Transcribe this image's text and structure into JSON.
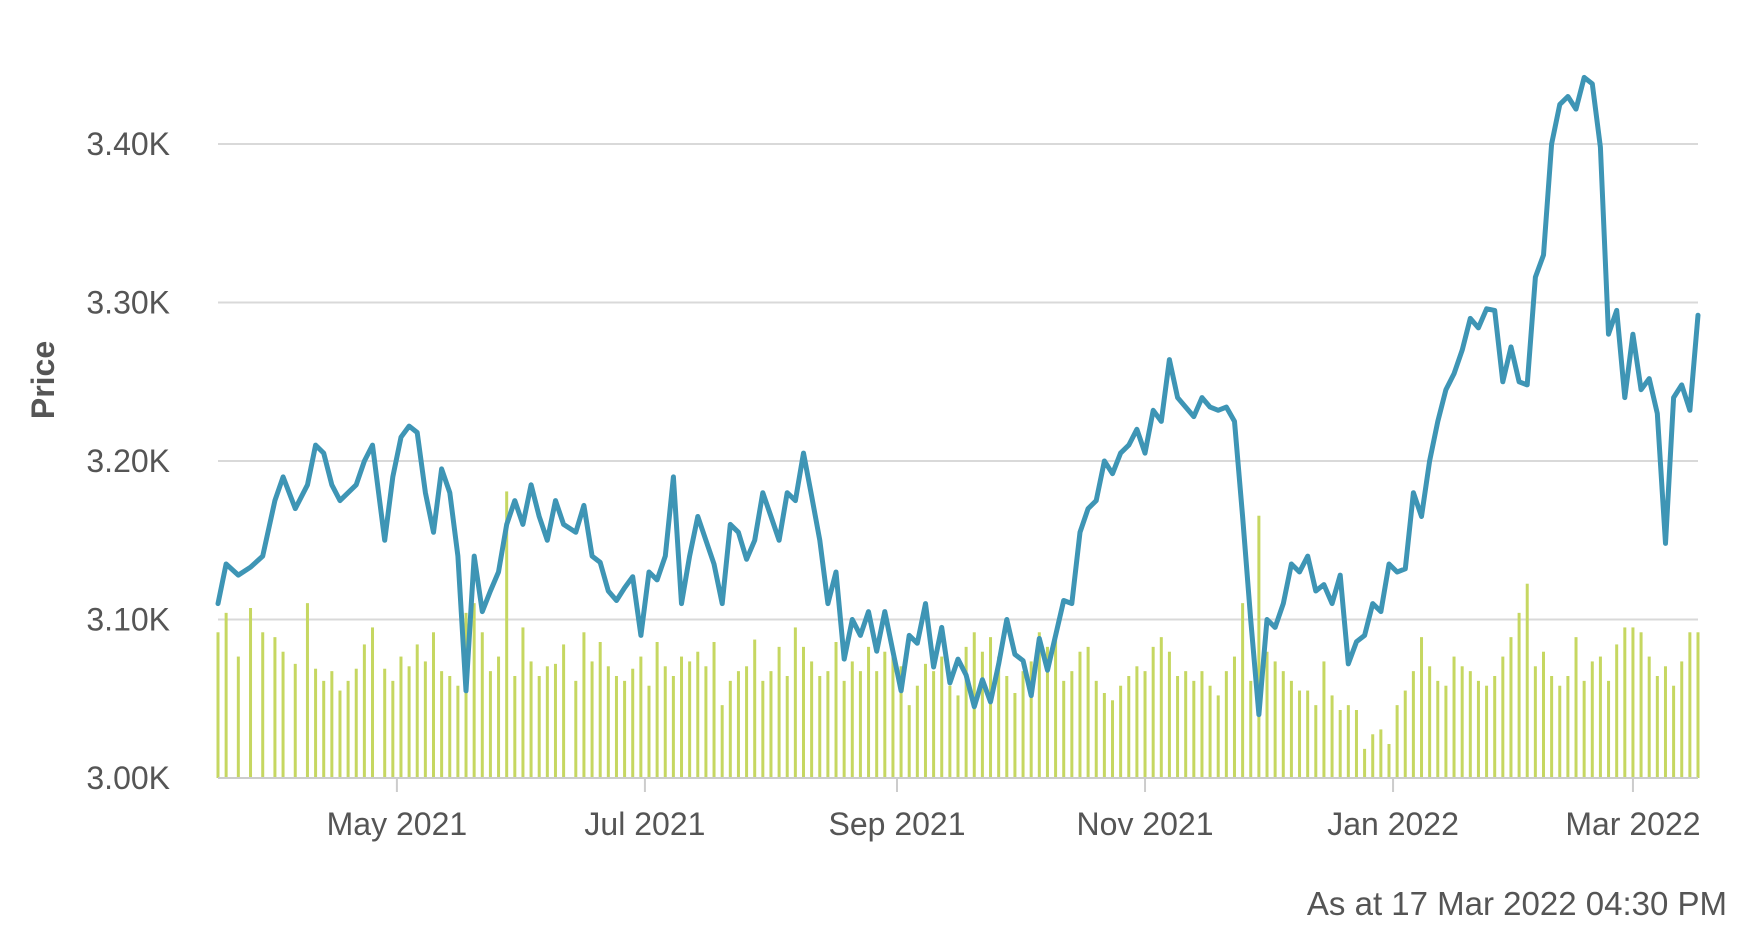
{
  "footer": {
    "as_at": "As at 17 Mar 2022 04:30 PM"
  },
  "colors": {
    "price_line": "#3e95b5",
    "volume_bars": "#c6d761",
    "gridline": "#d9d9d9",
    "axis": "#cccccc",
    "text": "#555555"
  },
  "chart_data": {
    "type": "line",
    "ylabel": "Price",
    "xlabel": "",
    "ylim": [
      3000,
      3460
    ],
    "yticks": [
      3000,
      3100,
      3200,
      3300,
      3400
    ],
    "ytick_labels": [
      "3.00K",
      "3.10K",
      "3.20K",
      "3.30K",
      "3.40K"
    ],
    "xlim": [
      "2021-03-18",
      "2022-03-17"
    ],
    "xticks": [
      {
        "date": "2021-05-01",
        "label": "May 2021"
      },
      {
        "date": "2021-07-01",
        "label": "Jul 2021"
      },
      {
        "date": "2021-09-01",
        "label": "Sep 2021"
      },
      {
        "date": "2021-11-01",
        "label": "Nov 2021"
      },
      {
        "date": "2022-01-01",
        "label": "Jan 2022"
      },
      {
        "date": "2022-03-01",
        "label": "Mar 2022"
      }
    ],
    "grid": true,
    "legend": "none",
    "series": [
      {
        "role": "price",
        "x": [
          "2021-03-18",
          "2021-03-20",
          "2021-03-23",
          "2021-03-26",
          "2021-03-29",
          "2021-04-01",
          "2021-04-03",
          "2021-04-06",
          "2021-04-09",
          "2021-04-11",
          "2021-04-13",
          "2021-04-15",
          "2021-04-17",
          "2021-04-19",
          "2021-04-21",
          "2021-04-23",
          "2021-04-25",
          "2021-04-28",
          "2021-04-30",
          "2021-05-02",
          "2021-05-04",
          "2021-05-06",
          "2021-05-08",
          "2021-05-10",
          "2021-05-12",
          "2021-05-14",
          "2021-05-16",
          "2021-05-18",
          "2021-05-20",
          "2021-05-22",
          "2021-05-24",
          "2021-05-26",
          "2021-05-28",
          "2021-05-30",
          "2021-06-01",
          "2021-06-03",
          "2021-06-05",
          "2021-06-07",
          "2021-06-09",
          "2021-06-11",
          "2021-06-14",
          "2021-06-16",
          "2021-06-18",
          "2021-06-20",
          "2021-06-22",
          "2021-06-24",
          "2021-06-26",
          "2021-06-28",
          "2021-06-30",
          "2021-07-02",
          "2021-07-04",
          "2021-07-06",
          "2021-07-08",
          "2021-07-10",
          "2021-07-12",
          "2021-07-14",
          "2021-07-16",
          "2021-07-18",
          "2021-07-20",
          "2021-07-22",
          "2021-07-24",
          "2021-07-26",
          "2021-07-28",
          "2021-07-30",
          "2021-08-01",
          "2021-08-03",
          "2021-08-05",
          "2021-08-07",
          "2021-08-09",
          "2021-08-11",
          "2021-08-13",
          "2021-08-15",
          "2021-08-17",
          "2021-08-19",
          "2021-08-21",
          "2021-08-23",
          "2021-08-25",
          "2021-08-27",
          "2021-08-29",
          "2021-08-31",
          "2021-09-02",
          "2021-09-04",
          "2021-09-06",
          "2021-09-08",
          "2021-09-10",
          "2021-09-12",
          "2021-09-14",
          "2021-09-16",
          "2021-09-18",
          "2021-09-20",
          "2021-09-22",
          "2021-09-24",
          "2021-09-26",
          "2021-09-28",
          "2021-09-30",
          "2021-10-02",
          "2021-10-04",
          "2021-10-06",
          "2021-10-08",
          "2021-10-10",
          "2021-10-12",
          "2021-10-14",
          "2021-10-16",
          "2021-10-18",
          "2021-10-20",
          "2021-10-22",
          "2021-10-24",
          "2021-10-26",
          "2021-10-28",
          "2021-10-30",
          "2021-11-01",
          "2021-11-03",
          "2021-11-05",
          "2021-11-07",
          "2021-11-09",
          "2021-11-11",
          "2021-11-13",
          "2021-11-15",
          "2021-11-17",
          "2021-11-19",
          "2021-11-21",
          "2021-11-23",
          "2021-11-25",
          "2021-11-27",
          "2021-11-29",
          "2021-12-01",
          "2021-12-03",
          "2021-12-05",
          "2021-12-07",
          "2021-12-09",
          "2021-12-11",
          "2021-12-13",
          "2021-12-15",
          "2021-12-17",
          "2021-12-19",
          "2021-12-21",
          "2021-12-23",
          "2021-12-25",
          "2021-12-27",
          "2021-12-29",
          "2021-12-31",
          "2022-01-02",
          "2022-01-04",
          "2022-01-06",
          "2022-01-08",
          "2022-01-10",
          "2022-01-12",
          "2022-01-14",
          "2022-01-16",
          "2022-01-18",
          "2022-01-20",
          "2022-01-22",
          "2022-01-24",
          "2022-01-26",
          "2022-01-28",
          "2022-01-30",
          "2022-02-01",
          "2022-02-03",
          "2022-02-05",
          "2022-02-07",
          "2022-02-09",
          "2022-02-11",
          "2022-02-13",
          "2022-02-15",
          "2022-02-17",
          "2022-02-19",
          "2022-02-21",
          "2022-02-23",
          "2022-02-25",
          "2022-02-27",
          "2022-03-01",
          "2022-03-03",
          "2022-03-05",
          "2022-03-07",
          "2022-03-09",
          "2022-03-11",
          "2022-03-13",
          "2022-03-15",
          "2022-03-17"
        ],
        "values": [
          3110,
          3135,
          3128,
          3133,
          3140,
          3175,
          3190,
          3170,
          3185,
          3210,
          3205,
          3185,
          3175,
          3180,
          3185,
          3200,
          3210,
          3150,
          3190,
          3215,
          3222,
          3218,
          3180,
          3155,
          3195,
          3180,
          3140,
          3055,
          3140,
          3105,
          3118,
          3130,
          3160,
          3175,
          3160,
          3185,
          3165,
          3150,
          3175,
          3160,
          3155,
          3172,
          3140,
          3136,
          3118,
          3112,
          3120,
          3127,
          3090,
          3130,
          3125,
          3140,
          3190,
          3110,
          3140,
          3165,
          3150,
          3135,
          3110,
          3160,
          3155,
          3138,
          3150,
          3180,
          3165,
          3150,
          3180,
          3175,
          3205,
          3178,
          3150,
          3110,
          3130,
          3075,
          3100,
          3090,
          3105,
          3080,
          3105,
          3080,
          3055,
          3090,
          3085,
          3110,
          3070,
          3095,
          3060,
          3075,
          3065,
          3045,
          3062,
          3048,
          3072,
          3100,
          3078,
          3074,
          3052,
          3088,
          3068,
          3090,
          3112,
          3110,
          3155,
          3170,
          3175,
          3200,
          3192,
          3205,
          3210,
          3220,
          3205,
          3232,
          3225,
          3264,
          3240,
          3234,
          3228,
          3240,
          3234,
          3232,
          3234,
          3225,
          3165,
          3100,
          3040,
          3100,
          3095,
          3110,
          3135,
          3130,
          3140,
          3118,
          3122,
          3110,
          3128,
          3072,
          3086,
          3090,
          3110,
          3105,
          3135,
          3130,
          3132,
          3180,
          3165,
          3200,
          3225,
          3245,
          3255,
          3270,
          3290,
          3284,
          3296,
          3295,
          3250,
          3272,
          3250,
          3248,
          3316,
          3330,
          3400,
          3425,
          3430,
          3422,
          3442,
          3438,
          3398,
          3280,
          3295,
          3240,
          3280,
          3245,
          3252,
          3230,
          3148,
          3240,
          3248,
          3232,
          3292
        ]
      },
      {
        "role": "volume",
        "x": [
          "2021-03-18",
          "2021-03-20",
          "2021-03-23",
          "2021-03-26",
          "2021-03-29",
          "2021-04-01",
          "2021-04-03",
          "2021-04-06",
          "2021-04-09",
          "2021-04-11",
          "2021-04-13",
          "2021-04-15",
          "2021-04-17",
          "2021-04-19",
          "2021-04-21",
          "2021-04-23",
          "2021-04-25",
          "2021-04-28",
          "2021-04-30",
          "2021-05-02",
          "2021-05-04",
          "2021-05-06",
          "2021-05-08",
          "2021-05-10",
          "2021-05-12",
          "2021-05-14",
          "2021-05-16",
          "2021-05-18",
          "2021-05-20",
          "2021-05-22",
          "2021-05-24",
          "2021-05-26",
          "2021-05-28",
          "2021-05-30",
          "2021-06-01",
          "2021-06-03",
          "2021-06-05",
          "2021-06-07",
          "2021-06-09",
          "2021-06-11",
          "2021-06-14",
          "2021-06-16",
          "2021-06-18",
          "2021-06-20",
          "2021-06-22",
          "2021-06-24",
          "2021-06-26",
          "2021-06-28",
          "2021-06-30",
          "2021-07-02",
          "2021-07-04",
          "2021-07-06",
          "2021-07-08",
          "2021-07-10",
          "2021-07-12",
          "2021-07-14",
          "2021-07-16",
          "2021-07-18",
          "2021-07-20",
          "2021-07-22",
          "2021-07-24",
          "2021-07-26",
          "2021-07-28",
          "2021-07-30",
          "2021-08-01",
          "2021-08-03",
          "2021-08-05",
          "2021-08-07",
          "2021-08-09",
          "2021-08-11",
          "2021-08-13",
          "2021-08-15",
          "2021-08-17",
          "2021-08-19",
          "2021-08-21",
          "2021-08-23",
          "2021-08-25",
          "2021-08-27",
          "2021-08-29",
          "2021-08-31",
          "2021-09-02",
          "2021-09-04",
          "2021-09-06",
          "2021-09-08",
          "2021-09-10",
          "2021-09-12",
          "2021-09-14",
          "2021-09-16",
          "2021-09-18",
          "2021-09-20",
          "2021-09-22",
          "2021-09-24",
          "2021-09-26",
          "2021-09-28",
          "2021-09-30",
          "2021-10-02",
          "2021-10-04",
          "2021-10-06",
          "2021-10-08",
          "2021-10-10",
          "2021-10-12",
          "2021-10-14",
          "2021-10-16",
          "2021-10-18",
          "2021-10-20",
          "2021-10-22",
          "2021-10-24",
          "2021-10-26",
          "2021-10-28",
          "2021-10-30",
          "2021-11-01",
          "2021-11-03",
          "2021-11-05",
          "2021-11-07",
          "2021-11-09",
          "2021-11-11",
          "2021-11-13",
          "2021-11-15",
          "2021-11-17",
          "2021-11-19",
          "2021-11-21",
          "2021-11-23",
          "2021-11-25",
          "2021-11-27",
          "2021-11-29",
          "2021-12-01",
          "2021-12-03",
          "2021-12-05",
          "2021-12-07",
          "2021-12-09",
          "2021-12-11",
          "2021-12-13",
          "2021-12-15",
          "2021-12-17",
          "2021-12-19",
          "2021-12-21",
          "2021-12-23",
          "2021-12-25",
          "2021-12-27",
          "2021-12-29",
          "2021-12-31",
          "2022-01-02",
          "2022-01-04",
          "2022-01-06",
          "2022-01-08",
          "2022-01-10",
          "2022-01-12",
          "2022-01-14",
          "2022-01-16",
          "2022-01-18",
          "2022-01-20",
          "2022-01-22",
          "2022-01-24",
          "2022-01-26",
          "2022-01-28",
          "2022-01-30",
          "2022-02-01",
          "2022-02-03",
          "2022-02-05",
          "2022-02-07",
          "2022-02-09",
          "2022-02-11",
          "2022-02-13",
          "2022-02-15",
          "2022-02-17",
          "2022-02-19",
          "2022-02-21",
          "2022-02-23",
          "2022-02-25",
          "2022-02-27",
          "2022-03-01",
          "2022-03-03",
          "2022-03-05",
          "2022-03-07",
          "2022-03-09",
          "2022-03-11",
          "2022-03-13",
          "2022-03-15",
          "2022-03-17"
        ],
        "values": [
          60,
          68,
          50,
          70,
          60,
          58,
          52,
          47,
          72,
          45,
          40,
          44,
          36,
          40,
          45,
          55,
          62,
          45,
          40,
          50,
          46,
          55,
          48,
          60,
          44,
          42,
          38,
          68,
          72,
          60,
          44,
          50,
          118,
          42,
          62,
          48,
          42,
          46,
          47,
          55,
          40,
          60,
          48,
          56,
          46,
          42,
          40,
          45,
          50,
          38,
          56,
          46,
          42,
          50,
          48,
          52,
          46,
          56,
          30,
          40,
          44,
          46,
          57,
          40,
          44,
          54,
          42,
          62,
          54,
          48,
          42,
          44,
          56,
          40,
          48,
          44,
          54,
          44,
          52,
          50,
          46,
          30,
          38,
          47,
          44,
          50,
          38,
          34,
          54,
          60,
          52,
          58,
          50,
          42,
          35,
          44,
          48,
          60,
          54,
          58,
          40,
          44,
          52,
          54,
          40,
          35,
          32,
          38,
          42,
          46,
          44,
          54,
          58,
          52,
          42,
          44,
          40,
          44,
          38,
          34,
          44,
          50,
          72,
          40,
          108,
          52,
          48,
          44,
          40,
          36,
          36,
          30,
          48,
          34,
          28,
          30,
          28,
          12,
          18,
          20,
          14,
          30,
          36,
          44,
          58,
          46,
          40,
          38,
          50,
          46,
          44,
          40,
          38,
          42,
          50,
          58,
          68,
          80,
          46,
          52,
          42,
          38,
          42,
          58,
          40,
          48,
          50,
          40,
          55,
          62,
          62,
          60,
          50,
          42,
          46,
          38,
          48,
          60,
          60
        ]
      }
    ]
  }
}
